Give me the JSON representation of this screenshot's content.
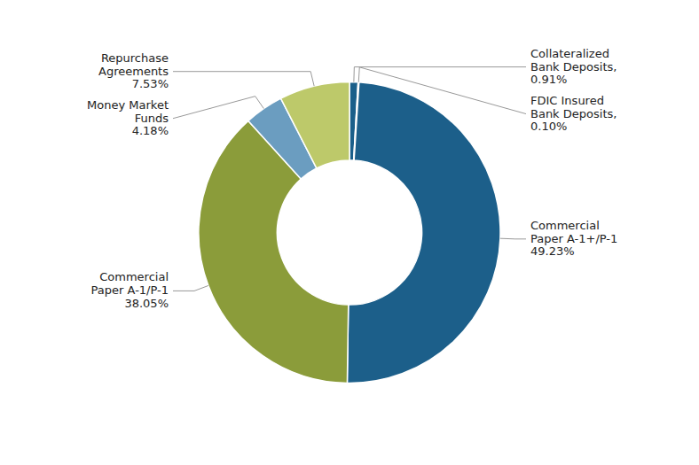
{
  "chart_data": {
    "type": "donut",
    "categories": [
      "Collateralized\nBank Deposits,",
      "FDIC Insured\nBank Deposits,",
      "Commercial\nPaper A-1+/P-1",
      "Commercial\nPaper A-1/P-1",
      "Money Market\nFunds",
      "Repurchase\nAgreements"
    ],
    "values": [
      0.91,
      0.1,
      49.23,
      38.05,
      4.18,
      7.53
    ],
    "value_labels": [
      "0.91%",
      "0.10%",
      "49.23%",
      "38.05%",
      "4.18%",
      "7.53%"
    ],
    "colors": [
      "#1A5F8A",
      "#1D3E5C",
      "#1C5F8A",
      "#8B9C3A",
      "#6B9DC0",
      "#BDC96A"
    ],
    "data_labels": true
  }
}
